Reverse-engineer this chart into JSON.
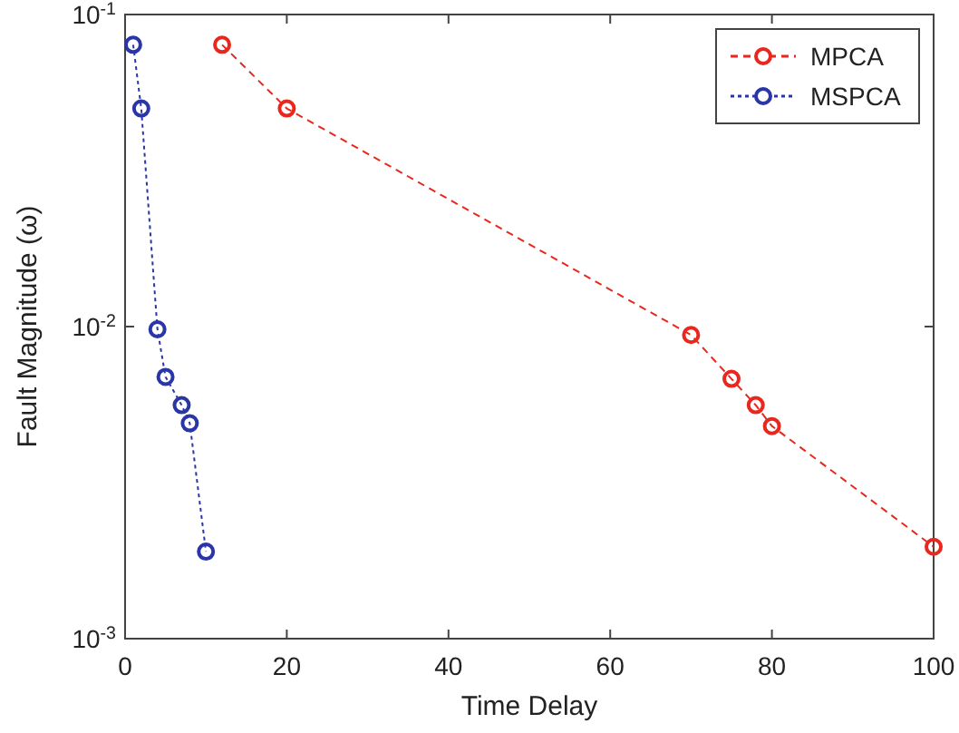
{
  "chart_data": {
    "type": "line",
    "xlabel": "Time Delay",
    "ylabel": "Fault Magnitude (ω)",
    "log": "y",
    "xlim": [
      0,
      100
    ],
    "xticks": [
      0,
      20,
      40,
      60,
      80,
      100
    ],
    "ylim": [
      0.001,
      0.1
    ],
    "yticks": [
      {
        "value": 0.001,
        "label": "10$^{-3}$"
      },
      {
        "value": 0.01,
        "label": "10$^{-2}$"
      },
      {
        "value": 0.1,
        "label": "10$^{-1}$"
      }
    ],
    "grid": false,
    "legend": "top right",
    "marker": "circle",
    "series": [
      {
        "name": "MPCA",
        "color": "#e8281e",
        "line_style": "dashed",
        "x": [
          12,
          20,
          70,
          75,
          78,
          80,
          100
        ],
        "values": [
          0.08,
          0.05,
          0.0094,
          0.0068,
          0.0056,
          0.0048,
          0.00197
        ]
      },
      {
        "name": "MSPCA",
        "color": "#2a36a8",
        "line_style": "dotted",
        "x": [
          1,
          2,
          4,
          5,
          7,
          8,
          10
        ],
        "values": [
          0.08,
          0.05,
          0.0098,
          0.0069,
          0.0056,
          0.0049,
          0.0019
        ]
      }
    ]
  }
}
